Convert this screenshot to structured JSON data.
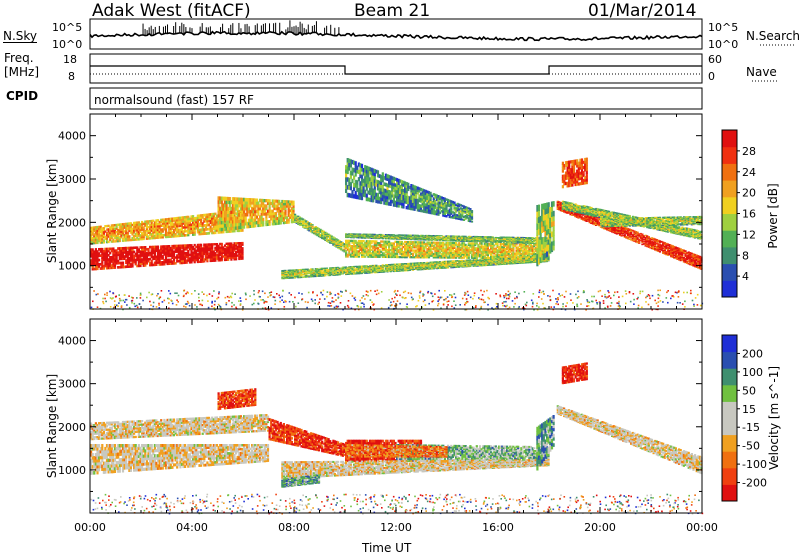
{
  "header": {
    "station": "Adak West (fitACF)",
    "beam": "Beam 21",
    "date": "01/Mar/2014"
  },
  "strip_noise": {
    "left_label": "N.Sky",
    "right_label": "N.Search",
    "left_ticks": [
      "10^5",
      "10^0"
    ],
    "right_ticks": [
      "10^5",
      "10^0"
    ]
  },
  "strip_freq": {
    "left_label_1": "Freq.",
    "left_label_2": "[MHz]",
    "left_ticks": [
      "18",
      "8"
    ],
    "right_label": "Nave",
    "right_ticks": [
      "60",
      "0"
    ]
  },
  "strip_cpid": {
    "label": "CPID",
    "text": "normalsound (fast) 157 RF"
  },
  "colors": {
    "power": [
      "#1f2fd6",
      "#2a4fb0",
      "#3f8f6f",
      "#52b055",
      "#9fd040",
      "#f0d020",
      "#f0a020",
      "#f07010",
      "#f03010",
      "#e01010"
    ],
    "velocity": [
      "#e01010",
      "#f04010",
      "#f07010",
      "#f0a020",
      "#c8c8c0",
      "#c8c8c0",
      "#70c040",
      "#3f8f6f",
      "#2a4fb0",
      "#1f2fd6"
    ]
  },
  "chart_data": [
    {
      "type": "heatmap",
      "name": "power",
      "ylabel": "Slant Range [km]",
      "ylim": [
        0,
        4500
      ],
      "y_ticks": [
        "1000",
        "2000",
        "3000",
        "4000"
      ],
      "xlim": [
        0,
        24
      ],
      "colorbar_label": "Power [dB]",
      "colorbar_ticks": [
        "4",
        "8",
        "12",
        "16",
        "20",
        "24",
        "28"
      ],
      "colorbar_range": [
        0,
        32
      ],
      "bands": [
        {
          "t": [
            0,
            6
          ],
          "r_start": [
            900,
            1150
          ],
          "r_end": [
            1400,
            1550
          ],
          "level": 0.9
        },
        {
          "t": [
            0,
            6
          ],
          "r_start": [
            1500,
            1800
          ],
          "r_end": [
            1900,
            2300
          ],
          "level": 0.55
        },
        {
          "t": [
            5,
            8
          ],
          "r_start": [
            1800,
            2000
          ],
          "r_end": [
            2600,
            2500
          ],
          "level": 0.5
        },
        {
          "t": [
            8,
            10
          ],
          "r_start": [
            2000,
            1300
          ],
          "r_end": [
            2200,
            1500
          ],
          "level": 0.35
        },
        {
          "t": [
            7.5,
            18
          ],
          "r_start": [
            700,
            1100
          ],
          "r_end": [
            900,
            1250
          ],
          "level": 0.35
        },
        {
          "t": [
            10,
            18
          ],
          "r_start": [
            1200,
            1150
          ],
          "r_end": [
            1600,
            1500
          ],
          "level": 0.45
        },
        {
          "t": [
            10,
            18
          ],
          "r_start": [
            1650,
            1500
          ],
          "r_end": [
            1750,
            1650
          ],
          "level": 0.3
        },
        {
          "t": [
            17.5,
            18.2
          ],
          "r_start": [
            1000,
            1400
          ],
          "r_end": [
            2400,
            2500
          ],
          "level": 0.35
        },
        {
          "t": [
            18.3,
            24
          ],
          "r_start": [
            2300,
            900
          ],
          "r_end": [
            2500,
            1200
          ],
          "level": 0.8
        },
        {
          "t": [
            18.5,
            24
          ],
          "r_start": [
            2300,
            1600
          ],
          "r_end": [
            2500,
            1800
          ],
          "level": 0.35
        },
        {
          "t": [
            20,
            24
          ],
          "r_start": [
            1900,
            1950
          ],
          "r_end": [
            2100,
            2150
          ],
          "level": 0.35
        },
        {
          "t": [
            10,
            15
          ],
          "r_start": [
            2600,
            2000
          ],
          "r_end": [
            3500,
            2300
          ],
          "level": 0.2
        },
        {
          "t": [
            18.5,
            19.5
          ],
          "r_start": [
            2800,
            2900
          ],
          "r_end": [
            3400,
            3500
          ],
          "level": 0.75
        }
      ]
    },
    {
      "type": "heatmap",
      "name": "velocity",
      "ylabel": "Slant Range [km]",
      "ylim": [
        0,
        4500
      ],
      "y_ticks": [
        "1000",
        "2000",
        "3000",
        "4000"
      ],
      "xlim": [
        0,
        24
      ],
      "xlabel": "Time UT",
      "x_ticks": [
        "00:00",
        "04:00",
        "08:00",
        "12:00",
        "16:00",
        "20:00",
        "00:00"
      ],
      "colorbar_label": "Velocity [m s^-1]",
      "colorbar_ticks": [
        "-200",
        "-100",
        "-50",
        "-15",
        "15",
        "50",
        "100",
        "200"
      ],
      "colorbar_range": [
        -250,
        250
      ],
      "bands": [
        {
          "t": [
            0,
            7
          ],
          "r_start": [
            900,
            1200
          ],
          "r_end": [
            1600,
            1600
          ],
          "level": 0.45
        },
        {
          "t": [
            0,
            7
          ],
          "r_start": [
            1700,
            1900
          ],
          "r_end": [
            2100,
            2300
          ],
          "level": 0.45
        },
        {
          "t": [
            5,
            6.5
          ],
          "r_start": [
            2400,
            2500
          ],
          "r_end": [
            2800,
            2900
          ],
          "level": 0.15
        },
        {
          "t": [
            7,
            10
          ],
          "r_start": [
            1700,
            1300
          ],
          "r_end": [
            2200,
            1600
          ],
          "level": 0.1
        },
        {
          "t": [
            10,
            13
          ],
          "r_start": [
            1200,
            1200
          ],
          "r_end": [
            1700,
            1700
          ],
          "level": 0.05
        },
        {
          "t": [
            12,
            18
          ],
          "r_start": [
            1200,
            1250
          ],
          "r_end": [
            1600,
            1550
          ],
          "level": 0.65
        },
        {
          "t": [
            7.5,
            18
          ],
          "r_start": [
            800,
            1100
          ],
          "r_end": [
            1200,
            1250
          ],
          "level": 0.45
        },
        {
          "t": [
            7.5,
            9
          ],
          "r_start": [
            600,
            700
          ],
          "r_end": [
            800,
            900
          ],
          "level": 0.7
        },
        {
          "t": [
            17.5,
            18.2
          ],
          "r_start": [
            1000,
            1600
          ],
          "r_end": [
            2000,
            2300
          ],
          "level": 0.7
        },
        {
          "t": [
            18.3,
            24
          ],
          "r_start": [
            2300,
            900
          ],
          "r_end": [
            2500,
            1300
          ],
          "level": 0.45
        },
        {
          "t": [
            18.5,
            19.5
          ],
          "r_start": [
            3000,
            3100
          ],
          "r_end": [
            3400,
            3500
          ],
          "level": 0.05
        },
        {
          "t": [
            10,
            14
          ],
          "r_start": [
            1300,
            1300
          ],
          "r_end": [
            1600,
            1550
          ],
          "level": 0.25
        }
      ]
    }
  ]
}
